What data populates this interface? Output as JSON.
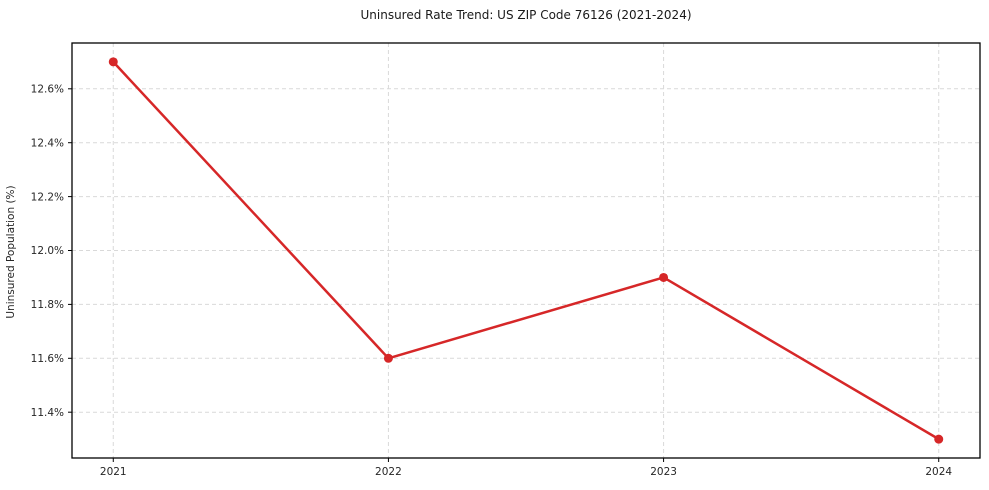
{
  "chart_data": {
    "type": "line",
    "title": "Uninsured Rate Trend: US ZIP Code 76126 (2021-2024)",
    "xlabel": "",
    "ylabel": "Uninsured Population (%)",
    "x": [
      2021,
      2022,
      2023,
      2024
    ],
    "x_tick_labels": [
      "2021",
      "2022",
      "2023",
      "2024"
    ],
    "series": [
      {
        "name": "Uninsured Population (%)",
        "values": [
          12.7,
          11.6,
          11.9,
          11.3
        ]
      }
    ],
    "y_ticks": [
      11.4,
      11.6,
      11.8,
      12.0,
      12.2,
      12.4,
      12.6
    ],
    "y_tick_labels": [
      "11.4%",
      "11.6%",
      "11.8%",
      "12.0%",
      "12.2%",
      "12.4%",
      "12.6%"
    ],
    "ylim": [
      11.23,
      12.77
    ],
    "xlim": [
      2020.85,
      2024.15
    ],
    "grid": true,
    "grid_style": "dashed",
    "legend_position": "none",
    "marker": "circle",
    "colors": {
      "line": "#d62728",
      "grid": "#d9d9d9",
      "text": "#262626",
      "spine": "#000000",
      "background": "#ffffff"
    }
  }
}
